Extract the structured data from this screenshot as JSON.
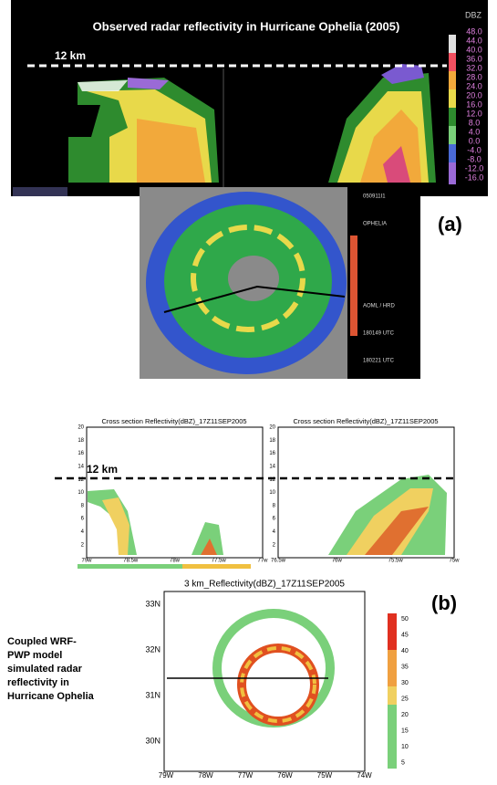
{
  "panel_a": {
    "title": "Observed radar reflectivity in Hurricane Ophelia (2005)",
    "level_label": "12 km",
    "colorbar_title": "DBZ",
    "colorbar_labels": [
      "48.0",
      "44.0",
      "40.0",
      "36.0",
      "32.0",
      "28.0",
      "24.0",
      "20.0",
      "16.0",
      "12.0",
      "8.0",
      "4.0",
      "0.0",
      "-4.0",
      "-8.0",
      "-12.0",
      "-16.0"
    ],
    "info": [
      "050911I1",
      "OPHELIA",
      "AOML / HRD",
      "180149 UTC",
      "180221 UTC"
    ],
    "panel_label": "(a)"
  },
  "panel_b": {
    "cross_sections": [
      {
        "title": "Cross section Reflectivity(dBZ)_17Z11SEP2005",
        "xticks": [
          "79w",
          "78.5w",
          "78w",
          "77.5w",
          "77w"
        ]
      },
      {
        "title": "Cross section Reflectivity(dBZ)_17Z11SEP2005",
        "xticks": [
          "76.5w",
          "76w",
          "75.5w",
          "75w"
        ]
      }
    ],
    "yticks": [
      "20",
      "18",
      "16",
      "14",
      "12",
      "10",
      "8",
      "6",
      "4",
      "2"
    ],
    "level_label": "12 km",
    "plan_title": "3 km_Reflectivity(dBZ)_17Z11SEP2005",
    "lat_labels": [
      "33N",
      "32N",
      "31N",
      "30N"
    ],
    "lon_labels": [
      "79W",
      "78W",
      "77W",
      "76W",
      "75W",
      "74W"
    ],
    "colorbar_labels": [
      "50",
      "45",
      "40",
      "35",
      "30",
      "25",
      "20",
      "15",
      "10",
      "5"
    ],
    "panel_label": "(b)",
    "caption": [
      "Coupled WRF-",
      "PWP model",
      "simulated radar",
      "reflectivity in",
      "Hurricane Ophelia"
    ]
  }
}
